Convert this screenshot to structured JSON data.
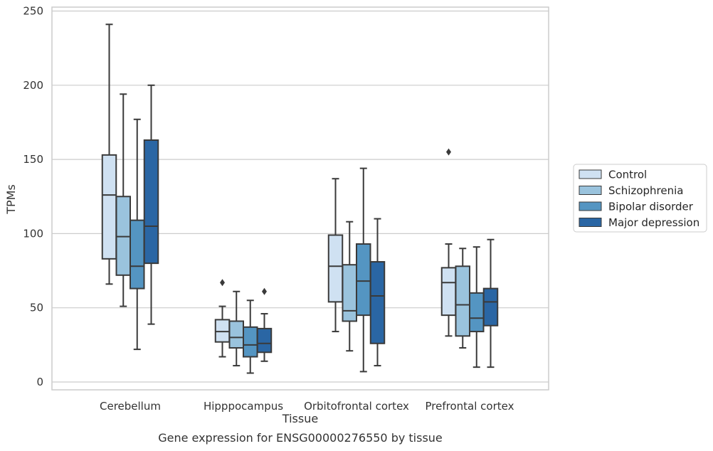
{
  "chart_data": {
    "type": "boxplot",
    "title": "Gene expression for ENSG00000276550 by tissue",
    "xlabel": "Tissue",
    "ylabel": "TPMs",
    "ylim": [
      -5,
      253
    ],
    "yticks": [
      0,
      50,
      100,
      150,
      200,
      250
    ],
    "grid": "horizontal",
    "legend_position": "right-outside",
    "categories": [
      "Cerebellum",
      "Hipppocampus",
      "Orbitofrontal cortex",
      "Prefrontal cortex"
    ],
    "series": [
      {
        "name": "Control",
        "color": "#cfe1f2",
        "boxes": [
          {
            "whisker_low": 66,
            "q1": 83,
            "median": 126,
            "q3": 153,
            "whisker_high": 241,
            "outliers": []
          },
          {
            "whisker_low": 17,
            "q1": 27,
            "median": 34,
            "q3": 42,
            "whisker_high": 51,
            "outliers": [
              67
            ]
          },
          {
            "whisker_low": 34,
            "q1": 54,
            "median": 78,
            "q3": 99,
            "whisker_high": 137,
            "outliers": []
          },
          {
            "whisker_low": 31,
            "q1": 45,
            "median": 67,
            "q3": 77,
            "whisker_high": 93,
            "outliers": [
              155
            ]
          }
        ]
      },
      {
        "name": "Schizophrenia",
        "color": "#9ac3dd",
        "boxes": [
          {
            "whisker_low": 51,
            "q1": 72,
            "median": 98,
            "q3": 125,
            "whisker_high": 194,
            "outliers": []
          },
          {
            "whisker_low": 11,
            "q1": 23,
            "median": 30,
            "q3": 41,
            "whisker_high": 61,
            "outliers": []
          },
          {
            "whisker_low": 21,
            "q1": 41,
            "median": 48,
            "q3": 79,
            "whisker_high": 108,
            "outliers": []
          },
          {
            "whisker_low": 23,
            "q1": 31,
            "median": 52,
            "q3": 78,
            "whisker_high": 90,
            "outliers": []
          }
        ]
      },
      {
        "name": "Bipolar disorder",
        "color": "#5495c2",
        "boxes": [
          {
            "whisker_low": 22,
            "q1": 63,
            "median": 78,
            "q3": 109,
            "whisker_high": 177,
            "outliers": []
          },
          {
            "whisker_low": 6,
            "q1": 17,
            "median": 25,
            "q3": 37,
            "whisker_high": 55,
            "outliers": []
          },
          {
            "whisker_low": 7,
            "q1": 45,
            "median": 68,
            "q3": 93,
            "whisker_high": 144,
            "outliers": []
          },
          {
            "whisker_low": 10,
            "q1": 34,
            "median": 43,
            "q3": 60,
            "whisker_high": 91,
            "outliers": []
          }
        ]
      },
      {
        "name": "Major depression",
        "color": "#2a66a4",
        "boxes": [
          {
            "whisker_low": 39,
            "q1": 80,
            "median": 105,
            "q3": 163,
            "whisker_high": 200,
            "outliers": []
          },
          {
            "whisker_low": 14,
            "q1": 20,
            "median": 26,
            "q3": 36,
            "whisker_high": 46,
            "outliers": [
              61
            ]
          },
          {
            "whisker_low": 11,
            "q1": 26,
            "median": 58,
            "q3": 81,
            "whisker_high": 110,
            "outliers": []
          },
          {
            "whisker_low": 10,
            "q1": 38,
            "median": 54,
            "q3": 63,
            "whisker_high": 96,
            "outliers": []
          }
        ]
      }
    ]
  }
}
